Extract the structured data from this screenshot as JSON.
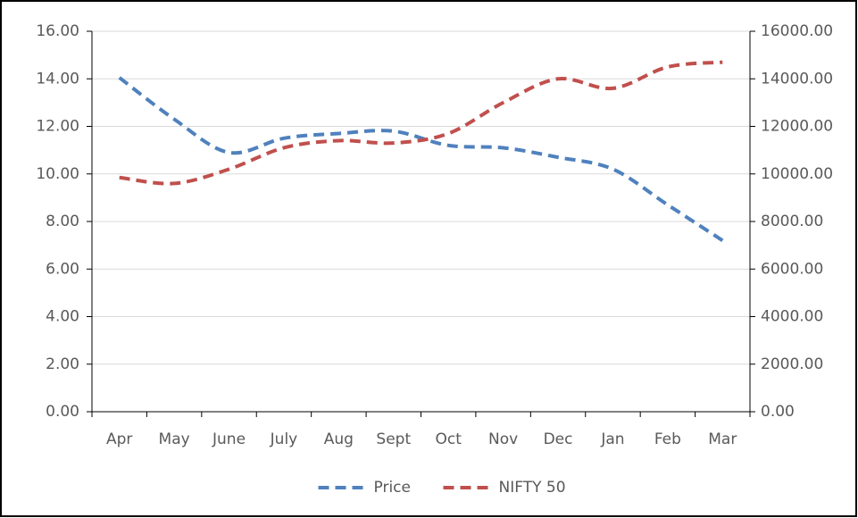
{
  "chart_data": {
    "type": "line",
    "categories": [
      "Apr",
      "May",
      "June",
      "July",
      "Aug",
      "Sept",
      "Oct",
      "Nov",
      "Dec",
      "Jan",
      "Feb",
      "Mar"
    ],
    "series": [
      {
        "name": "Price",
        "color": "#4f81bd",
        "values": [
          14.05,
          12.3,
          10.9,
          11.5,
          11.7,
          11.8,
          11.2,
          11.1,
          10.7,
          10.2,
          8.7,
          7.2
        ]
      },
      {
        "name": "NIFTY 50",
        "color": "#c0504d",
        "axis": "y2",
        "values": [
          9850,
          9600,
          10200,
          11100,
          11400,
          11300,
          11700,
          13000,
          14000,
          13600,
          14500,
          14700
        ]
      }
    ],
    "ylim": [
      0,
      16
    ],
    "yticks": [
      {
        "value": 0,
        "label": "0.00"
      },
      {
        "value": 2,
        "label": "2.00"
      },
      {
        "value": 4,
        "label": "4.00"
      },
      {
        "value": 6,
        "label": "6.00"
      },
      {
        "value": 8,
        "label": "8.00"
      },
      {
        "value": 10,
        "label": "10.00"
      },
      {
        "value": 12,
        "label": "12.00"
      },
      {
        "value": 14,
        "label": "14.00"
      },
      {
        "value": 16,
        "label": "16.00"
      }
    ],
    "y2lim": [
      0,
      16000
    ],
    "y2ticks": [
      {
        "value": 0,
        "label": "0.00"
      },
      {
        "value": 2000,
        "label": "2000.00"
      },
      {
        "value": 4000,
        "label": "4000.00"
      },
      {
        "value": 6000,
        "label": "6000.00"
      },
      {
        "value": 8000,
        "label": "8000.00"
      },
      {
        "value": 10000,
        "label": "10000.00"
      },
      {
        "value": 12000,
        "label": "12000.00"
      },
      {
        "value": 14000,
        "label": "14000.00"
      },
      {
        "value": 16000,
        "label": "16000.00"
      }
    ],
    "grid": true,
    "legend": "bottom"
  }
}
